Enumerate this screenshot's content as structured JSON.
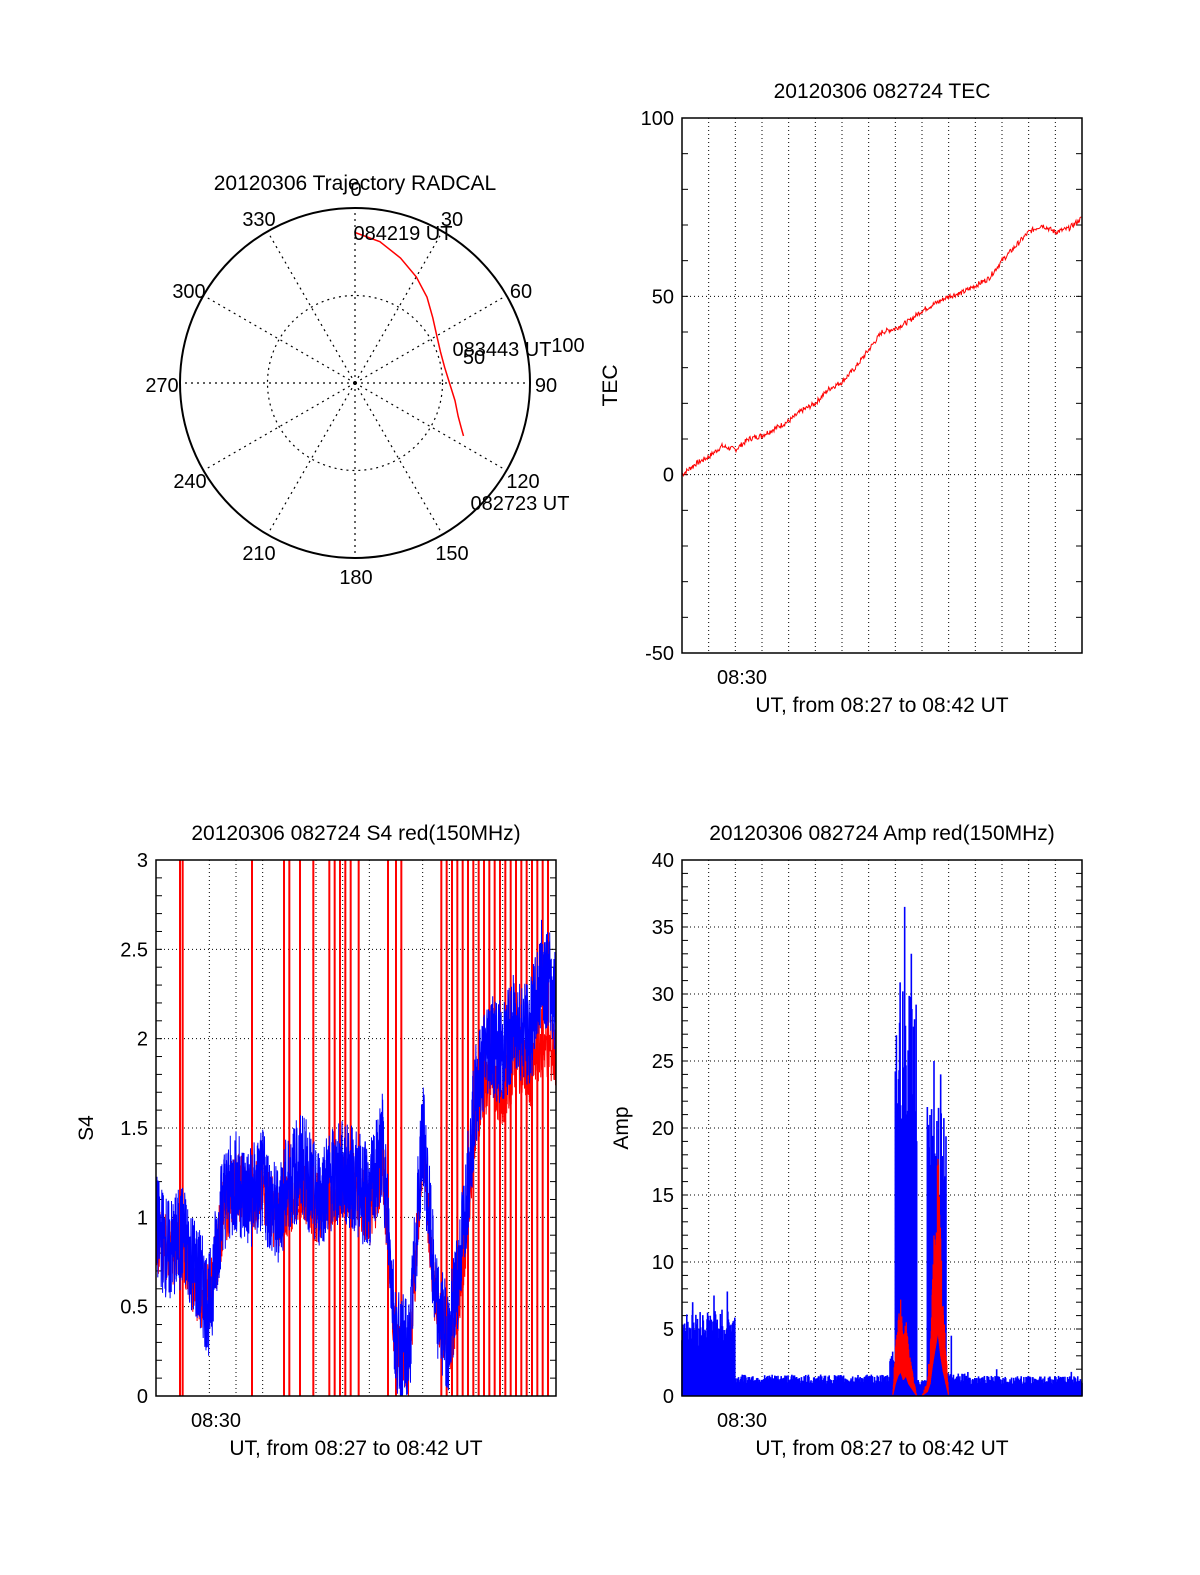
{
  "colors": {
    "red": "#ff0000",
    "blue": "#0000ff",
    "axis": "#000000",
    "grid": "#000000"
  },
  "chart_data": [
    {
      "id": "trajectory",
      "type": "polar",
      "title": "20120306 Trajectory RADCAL",
      "angle_labels": [
        "0",
        "30",
        "60",
        "90",
        "120",
        "150",
        "180",
        "210",
        "240",
        "270",
        "300",
        "330"
      ],
      "radial_labels": [
        "50",
        "100"
      ],
      "r_max": 100,
      "series": [
        {
          "name": "trajectory",
          "color": "#ff0000",
          "points": [
            [
              0,
              86
            ],
            [
              10,
              82
            ],
            [
              20,
              76
            ],
            [
              30,
              70
            ],
            [
              40,
              64
            ],
            [
              50,
              58
            ],
            [
              60,
              54
            ],
            [
              70,
              52
            ],
            [
              80,
              52
            ],
            [
              90,
              54
            ],
            [
              100,
              58
            ],
            [
              108,
              62
            ],
            [
              113,
              66
            ],
            [
              116,
              69
            ]
          ]
        }
      ],
      "annotations": [
        {
          "text": "084219 UT",
          "az": 0,
          "r": 86
        },
        {
          "text": "083443 UT",
          "az": 75,
          "r": 52
        },
        {
          "text": "082723 UT",
          "az": 116,
          "r": 69
        }
      ]
    },
    {
      "id": "tec",
      "type": "line",
      "title": "20120306 082724 TEC",
      "ylabel": "TEC",
      "xlabel": "UT, from 08:27 to 08:42 UT",
      "xtick_label": "08:30",
      "xtick_at": 3.3,
      "xlim": [
        0,
        15
      ],
      "ylim": [
        -50,
        100
      ],
      "yticks": [
        -50,
        0,
        50,
        100
      ],
      "grid": true,
      "series": [
        {
          "name": "TEC",
          "color": "#ff0000",
          "x": [
            0,
            0.5,
            1,
            1.5,
            2,
            2.5,
            3,
            3.5,
            4,
            4.5,
            5,
            5.5,
            6,
            6.5,
            7,
            7.5,
            8,
            8.5,
            9,
            9.5,
            10,
            10.5,
            11,
            11.5,
            12,
            12.5,
            13,
            13.5,
            14,
            14.5,
            15
          ],
          "y": [
            0,
            3,
            5,
            8,
            7,
            10,
            11,
            13,
            15,
            18,
            20,
            24,
            26,
            30,
            35,
            40,
            41,
            43,
            46,
            48,
            50,
            51,
            53,
            55,
            60,
            64,
            68,
            70,
            68,
            69,
            72
          ]
        }
      ]
    },
    {
      "id": "s4",
      "type": "line",
      "title": "20120306 082724 S4 red(150MHz)",
      "ylabel": "S4",
      "xlabel": "UT, from 08:27 to 08:42 UT",
      "xtick_label": "08:30",
      "xtick_at": 3.3,
      "xlim": [
        0,
        15
      ],
      "ylim": [
        0,
        3
      ],
      "yticks": [
        0,
        0.5,
        1,
        1.5,
        2,
        2.5,
        3
      ],
      "grid": true,
      "series": [
        {
          "name": "S4 red",
          "color": "#ff0000",
          "x": [
            0,
            0.5,
            1,
            1.5,
            2,
            2.5,
            3,
            3.5,
            4,
            4.5,
            5,
            5.5,
            6,
            6.5,
            7,
            7.5,
            8,
            8.5,
            9,
            9.5,
            10,
            10.5,
            11,
            11.5,
            12,
            12.5,
            13,
            13.5,
            14,
            14.5,
            15
          ],
          "y": [
            0.9,
            0.8,
            0.85,
            0.6,
            0.55,
            1.0,
            1.2,
            1.1,
            1.15,
            1.0,
            1.1,
            1.2,
            1.05,
            1.1,
            1.15,
            1.2,
            1.0,
            1.3,
            0.25,
            0.2,
            1.4,
            0.5,
            0.3,
            0.7,
            1.6,
            1.8,
            1.7,
            1.9,
            1.8,
            2.0,
            1.9
          ]
        },
        {
          "name": "S4 blue",
          "color": "#0000ff",
          "x": [
            0,
            0.5,
            1,
            1.5,
            2,
            2.5,
            3,
            3.5,
            4,
            4.5,
            5,
            5.5,
            6,
            6.5,
            7,
            7.5,
            8,
            8.5,
            9,
            9.5,
            10,
            10.5,
            11,
            11.5,
            12,
            12.5,
            13,
            13.5,
            14,
            14.5,
            15
          ],
          "y": [
            0.95,
            0.8,
            0.9,
            0.7,
            0.5,
            1.1,
            1.2,
            1.1,
            1.2,
            1.0,
            1.2,
            1.3,
            1.1,
            1.2,
            1.25,
            1.2,
            1.1,
            1.4,
            0.3,
            0.25,
            1.5,
            0.5,
            0.3,
            0.9,
            1.7,
            2.0,
            1.9,
            2.1,
            2.0,
            2.4,
            2.2
          ]
        }
      ],
      "spikes": {
        "color": "#ff0000",
        "x": [
          0.9,
          1.0,
          3.6,
          4.8,
          5.0,
          5.4,
          5.9,
          6.5,
          6.7,
          6.9,
          7.1,
          7.3,
          7.6,
          8.7,
          9.0,
          9.2,
          10.7,
          10.9,
          11.1,
          11.3,
          11.5,
          11.7,
          11.9,
          12.1,
          12.3,
          12.5,
          12.7,
          12.9,
          13.1,
          13.3,
          13.5,
          13.7,
          13.9,
          14.1,
          14.3,
          14.5,
          14.7
        ]
      }
    },
    {
      "id": "amp",
      "type": "line",
      "title": "20120306 082724 Amp red(150MHz)",
      "ylabel": "Amp",
      "xlabel": "UT, from 08:27 to 08:42 UT",
      "xtick_label": "08:30",
      "xtick_at": 3.3,
      "xlim": [
        0,
        15
      ],
      "ylim": [
        0,
        40
      ],
      "yticks": [
        0,
        5,
        10,
        15,
        20,
        25,
        30,
        35,
        40
      ],
      "grid": true,
      "series": [
        {
          "name": "Amp red",
          "color": "#ff0000",
          "x": [
            7.9,
            8.0,
            8.1,
            8.2,
            8.3,
            8.4,
            8.5,
            8.6,
            8.7,
            8.8,
            9.0,
            9.2,
            9.3,
            9.4,
            9.5,
            9.6,
            9.7,
            9.8,
            9.9,
            10.0
          ],
          "y": [
            0,
            3,
            5,
            6,
            4,
            5,
            3,
            2,
            1,
            0,
            0,
            1,
            3,
            8,
            12,
            16,
            10,
            6,
            3,
            0
          ]
        },
        {
          "name": "Amp blue",
          "color": "#0000ff",
          "bands": [
            {
              "x0": 0.0,
              "x1": 2.0,
              "y0": 0,
              "y1": 6.5
            },
            {
              "x0": 2.0,
              "x1": 7.8,
              "y0": 0,
              "y1": 1.6
            },
            {
              "x0": 7.8,
              "x1": 8.0,
              "y0": 0,
              "y1": 3.5
            },
            {
              "x0": 8.0,
              "x1": 8.8,
              "y0": 0,
              "y1": 31
            },
            {
              "x0": 8.8,
              "x1": 9.2,
              "y0": 0,
              "y1": 1.2
            },
            {
              "x0": 9.2,
              "x1": 9.9,
              "y0": 0,
              "y1": 22
            },
            {
              "x0": 9.9,
              "x1": 10.8,
              "y0": 0,
              "y1": 1.8
            },
            {
              "x0": 10.8,
              "x1": 15.0,
              "y0": 0,
              "y1": 1.5
            }
          ],
          "peaks": [
            [
              0.4,
              7
            ],
            [
              1.2,
              7.5
            ],
            [
              1.7,
              7.8
            ],
            [
              8.35,
              36.5
            ],
            [
              8.6,
              33
            ],
            [
              9.45,
              25
            ],
            [
              9.7,
              24
            ],
            [
              10.1,
              4.5
            ],
            [
              11.8,
              2
            ],
            [
              14.6,
              1.8
            ]
          ]
        }
      ]
    }
  ]
}
